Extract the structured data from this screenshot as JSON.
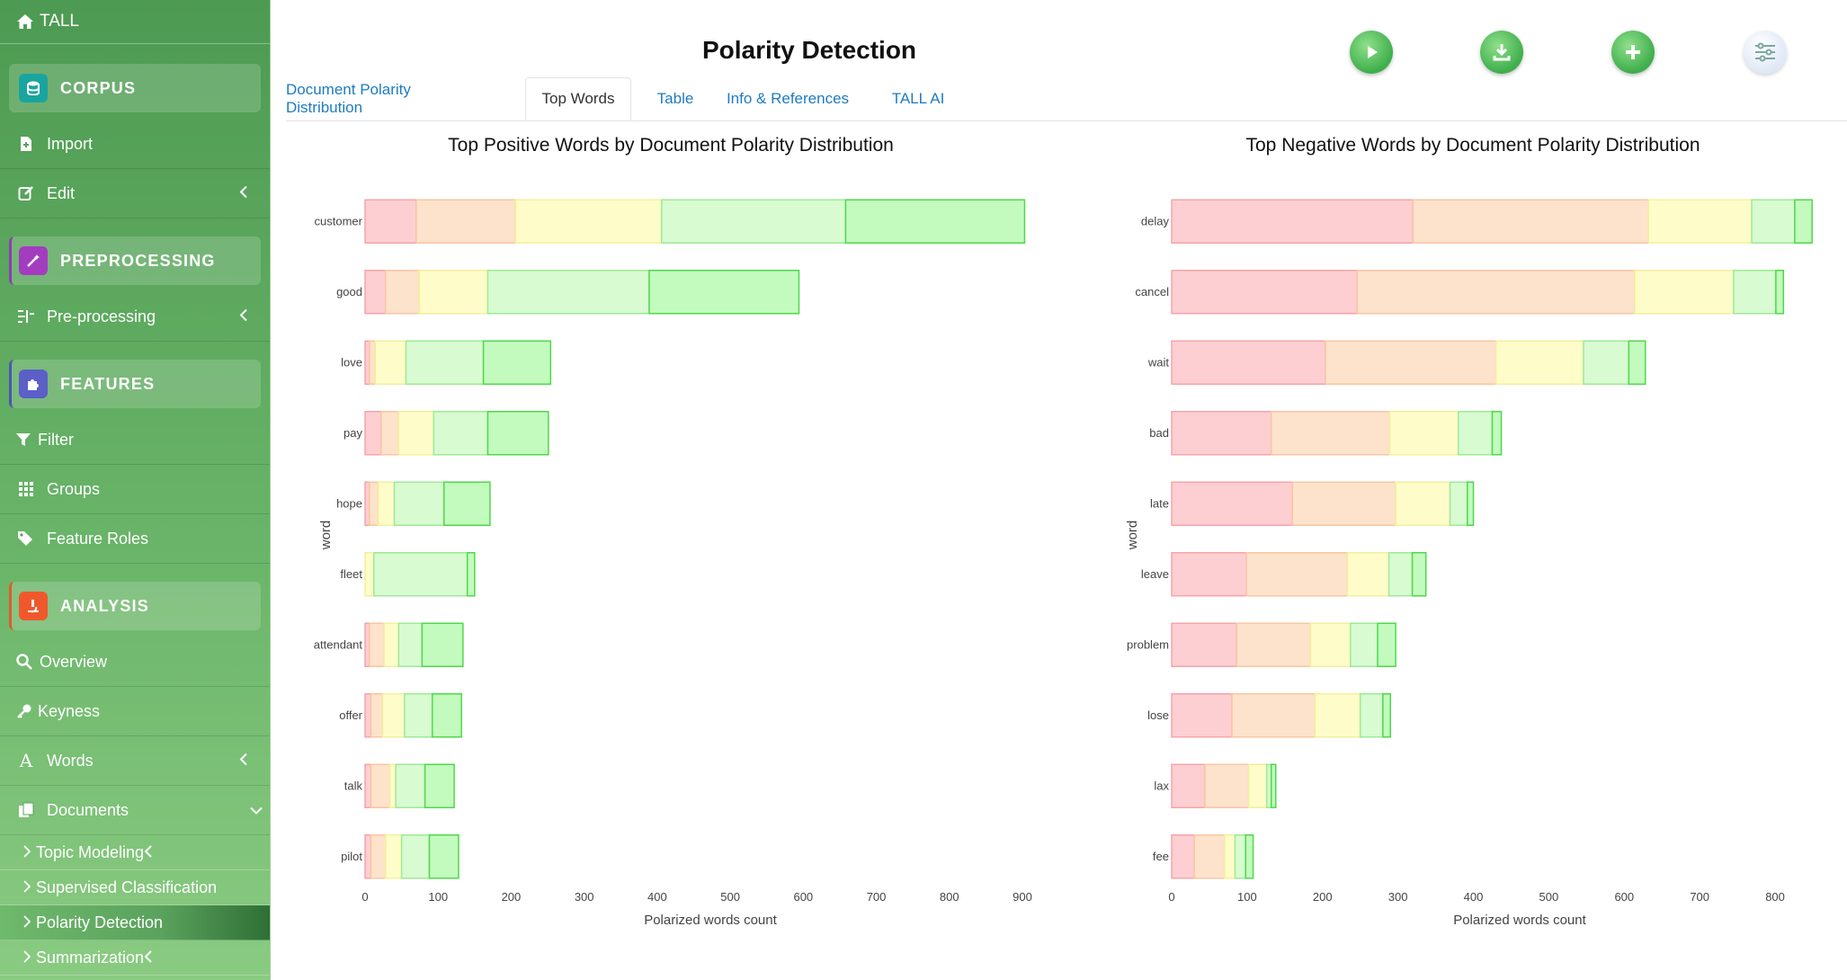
{
  "sidebar": {
    "brand": "TALL",
    "sections": {
      "corpus": "CORPUS",
      "preprocessing": "PREPROCESSING",
      "features": "FEATURES",
      "analysis": "ANALYSIS"
    },
    "items": {
      "import": "Import",
      "edit": "Edit",
      "preprocessing": "Pre-processing",
      "filter": "Filter",
      "groups": "Groups",
      "feature_roles": "Feature Roles",
      "overview": "Overview",
      "keyness": "Keyness",
      "words": "Words",
      "documents": "Documents"
    },
    "subitems": {
      "topic_modeling": "Topic Modeling",
      "supervised_classification": "Supervised Classification",
      "polarity_detection": "Polarity Detection",
      "summarization": "Summarization"
    }
  },
  "header": {
    "title": "Polarity Detection"
  },
  "tabs": [
    "Document Polarity Distribution",
    "Top Words",
    "Table",
    "Info & References",
    "TALL AI"
  ],
  "colors": {
    "segments": [
      "#fdcfd2",
      "#fde3cc",
      "#fefcc9",
      "#d8fbd2",
      "#c3fbbf"
    ],
    "segment_borders": [
      "#f7a4a8",
      "#f9c6a2",
      "#f3ef9d",
      "#9eea96",
      "#4fd948"
    ]
  },
  "chart_data": [
    {
      "type": "bar",
      "orientation": "horizontal",
      "stacked": true,
      "title": "Top Positive Words by Document Polarity Distribution",
      "xlabel": "Polarized words count",
      "ylabel": "word",
      "xlim": [
        0,
        900
      ],
      "xticks": [
        0,
        100,
        200,
        300,
        400,
        500,
        600,
        700,
        800,
        900
      ],
      "categories": [
        "customer",
        "good",
        "love",
        "pay",
        "hope",
        "fleet",
        "attendant",
        "offer",
        "talk",
        "pilot"
      ],
      "series": [
        {
          "values": [
            70,
            28,
            6,
            22,
            6,
            0,
            6,
            8,
            8,
            8
          ]
        },
        {
          "values": [
            136,
            46,
            8,
            24,
            12,
            0,
            20,
            16,
            26,
            20
          ]
        },
        {
          "values": [
            200,
            94,
            42,
            48,
            22,
            12,
            20,
            30,
            8,
            22
          ]
        },
        {
          "values": [
            252,
            221,
            106,
            74,
            68,
            128,
            32,
            38,
            40,
            38
          ]
        },
        {
          "values": [
            245,
            205,
            92,
            83,
            63,
            10,
            56,
            40,
            40,
            40
          ]
        }
      ]
    },
    {
      "type": "bar",
      "orientation": "horizontal",
      "stacked": true,
      "title": "Top Negative Words by Document Polarity Distribution",
      "xlabel": "Polarized words count",
      "ylabel": "word",
      "xlim": [
        0,
        850
      ],
      "xticks": [
        0,
        100,
        200,
        300,
        400,
        500,
        600,
        700,
        800
      ],
      "categories": [
        "delay",
        "cancel",
        "wait",
        "bad",
        "late",
        "leave",
        "problem",
        "lose",
        "lax",
        "fee"
      ],
      "series": [
        {
          "values": [
            320,
            246,
            204,
            132,
            160,
            99,
            86,
            80,
            44,
            30
          ]
        },
        {
          "values": [
            312,
            368,
            226,
            157,
            137,
            134,
            98,
            110,
            58,
            40
          ]
        },
        {
          "values": [
            137,
            131,
            116,
            91,
            72,
            55,
            53,
            60,
            24,
            14
          ]
        },
        {
          "values": [
            57,
            56,
            60,
            45,
            23,
            31,
            36,
            30,
            6,
            14
          ]
        },
        {
          "values": [
            23,
            10,
            22,
            12,
            8,
            18,
            24,
            10,
            6,
            10
          ]
        }
      ]
    }
  ]
}
